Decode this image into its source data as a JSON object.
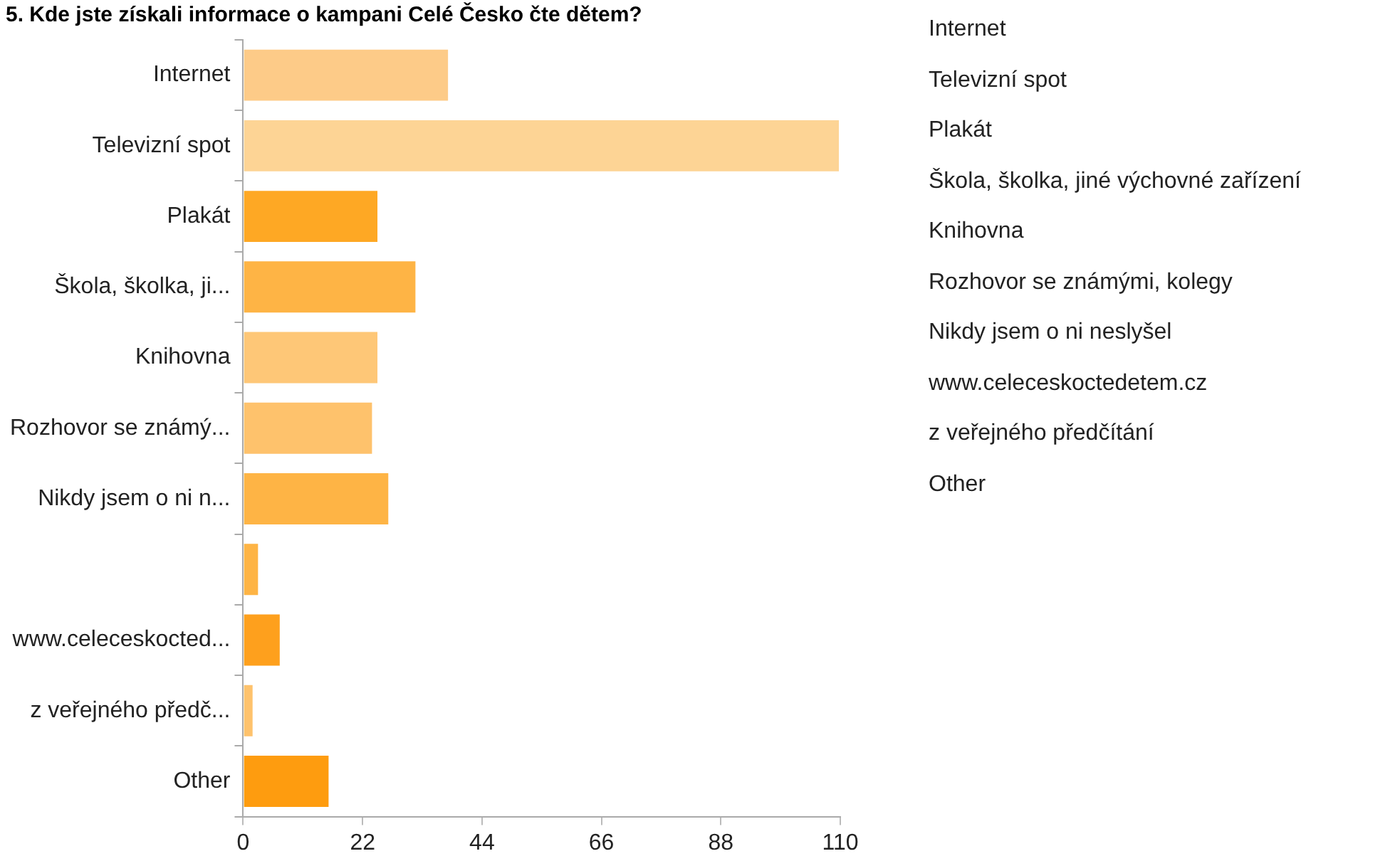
{
  "chart_data": {
    "type": "bar",
    "orientation": "horizontal",
    "title": "5. Kde jste získali informace o kampani Celé Česko čte dětem?",
    "categories": [
      "Internet",
      "Televizní spot",
      "Plakát",
      "Škola, školka, ji...",
      "Knihovna",
      "Rozhovor se známý...",
      "Nikdy jsem o ni n...",
      null,
      "www.celeceskocted...",
      "z veřejného předč...",
      "Other"
    ],
    "values": [
      38,
      110,
      25,
      32,
      25,
      24,
      27,
      3,
      7,
      2,
      16
    ],
    "colors": [
      "#fdcb88",
      "#fdd495",
      "#fea824",
      "#feb445",
      "#fec777",
      "#fec26c",
      "#feb445",
      "#feb445",
      "#fea01d",
      "#fec26c",
      "#fe9c0f"
    ],
    "xlim": [
      0,
      110
    ],
    "xticks": [
      0,
      22,
      44,
      66,
      88,
      110
    ],
    "grid": false,
    "legend": false,
    "annotations": [
      "Internet",
      "Televizní spot",
      "Plakát",
      "Škola, školka, jiné výchovné zařízení",
      "Knihovna",
      "Rozhovor se známými, kolegy",
      "Nikdy jsem o ni neslyšel",
      "www.celeceskoctedetem.cz",
      "z veřejného předčítání",
      "Other"
    ]
  }
}
